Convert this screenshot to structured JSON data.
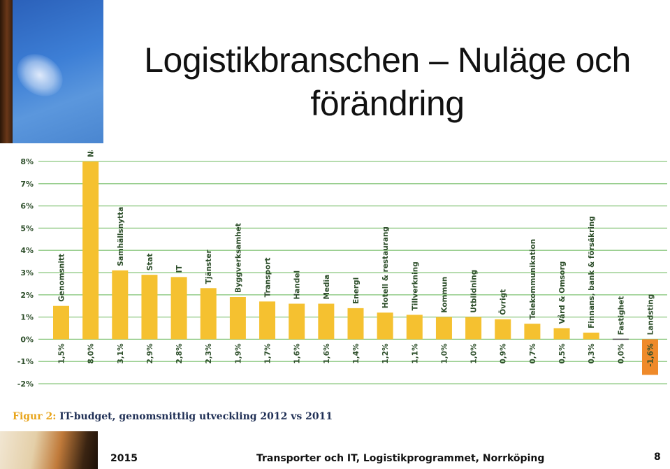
{
  "slide": {
    "title": "Logistikbranschen – Nuläge och förändring",
    "footer_year": "2015",
    "footer_text": "Transporter och IT, Logistikprogrammet, Norrköping",
    "page_number": "8"
  },
  "caption": {
    "lead": "Figur 2:",
    "text": " IT-budget, genomsnittlig utveckling 2012 vs 2011"
  },
  "colors": {
    "positive": "#f5c130",
    "negative": "#ef8a2a",
    "grid": "#8ac77e",
    "label": "#2d4e2a"
  },
  "chart_data": {
    "type": "bar",
    "ylim": [
      -2,
      8
    ],
    "yticks": [
      "8%",
      "7%",
      "6%",
      "5%",
      "4%",
      "3%",
      "2%",
      "1%",
      "0%",
      "-1%",
      "-2%"
    ],
    "grid": true,
    "categories": [
      "Genomsnitt",
      "Naturresurser",
      "Samhällsnytta",
      "Stat",
      "IT",
      "Tjänster",
      "Byggverksamhet",
      "Transport",
      "Handel",
      "Media",
      "Energi",
      "Hotell & restaurang",
      "Tillverkning",
      "Kommun",
      "Utbildning",
      "Övrigt",
      "Telekommunikation",
      "Vård & Omsorg",
      "Finnans, bank & försäkring",
      "Fastighet",
      "Landsting"
    ],
    "values": [
      1.5,
      8.0,
      3.1,
      2.9,
      2.8,
      2.3,
      1.9,
      1.7,
      1.6,
      1.6,
      1.4,
      1.2,
      1.1,
      1.0,
      1.0,
      0.9,
      0.7,
      0.5,
      0.3,
      0.0,
      -1.6
    ],
    "value_labels": [
      "1,5%",
      "8,0%",
      "3,1%",
      "2,9%",
      "2,8%",
      "2,3%",
      "1,9%",
      "1,7%",
      "1,6%",
      "1,6%",
      "1,4%",
      "1,2%",
      "1,1%",
      "1,0%",
      "1,0%",
      "0,9%",
      "0,7%",
      "0,5%",
      "0,3%",
      "0,0%",
      "-1,6%"
    ]
  }
}
